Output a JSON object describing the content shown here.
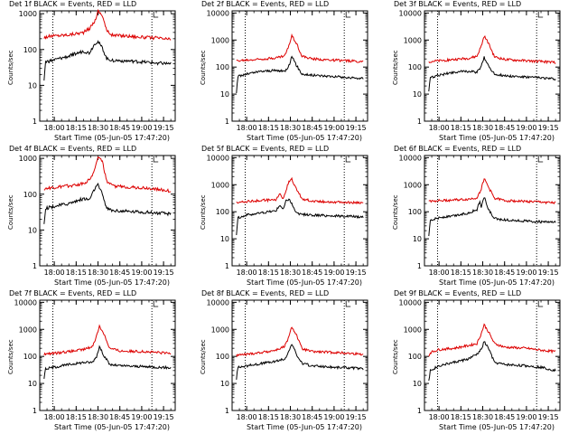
{
  "colors": {
    "events": "#000000",
    "lld": "#dd0000",
    "axis": "#000000"
  },
  "chart_data": [
    {
      "type": "line",
      "title": "Det 1f BLACK = Events, RED = LLD",
      "xlabel": "Start Time (05-Jun-05 17:47:20)",
      "ylabel": "Counts/sec",
      "x_ticks": [
        "18:00",
        "18:15",
        "18:30",
        "18:45",
        "19:00",
        "19:15"
      ],
      "y_ticks": [
        "1",
        "10",
        "100",
        "1000"
      ],
      "ylim": [
        1,
        1200
      ],
      "y_scale": "log",
      "vlines": [
        "17:59",
        "19:07"
      ],
      "series": [
        {
          "name": "LLD",
          "x": [
            "17:53",
            "17:59",
            "18:10",
            "18:20",
            "18:24",
            "18:28",
            "18:30",
            "18:33",
            "18:36",
            "18:40",
            "18:50",
            "19:00",
            "19:10",
            "19:20"
          ],
          "values": [
            220,
            240,
            260,
            300,
            380,
            650,
            1200,
            900,
            330,
            250,
            240,
            220,
            210,
            190
          ]
        },
        {
          "name": "Events",
          "x": [
            "17:53",
            "17:54",
            "17:59",
            "18:10",
            "18:20",
            "18:24",
            "18:26",
            "18:28",
            "18:30",
            "18:33",
            "18:36",
            "18:40",
            "18:50",
            "19:00",
            "19:10",
            "19:20"
          ],
          "values": [
            14,
            45,
            50,
            65,
            90,
            80,
            110,
            150,
            165,
            110,
            55,
            50,
            48,
            45,
            42,
            40
          ]
        }
      ]
    },
    {
      "type": "line",
      "title": "Det 2f BLACK = Events, RED = LLD",
      "xlabel": "Start Time (05-Jun-05 17:47:20)",
      "ylabel": "Counts/sec",
      "x_ticks": [
        "18:00",
        "18:15",
        "18:30",
        "18:45",
        "19:00",
        "19:15"
      ],
      "y_ticks": [
        "1",
        "10",
        "100",
        "1000",
        "10000"
      ],
      "ylim": [
        1,
        12000
      ],
      "y_scale": "log",
      "vlines": [
        "17:59",
        "19:07"
      ],
      "series": [
        {
          "name": "LLD",
          "x": [
            "17:53",
            "18:00",
            "18:10",
            "18:20",
            "18:26",
            "18:29",
            "18:31",
            "18:34",
            "18:38",
            "18:45",
            "19:00",
            "19:10",
            "19:20"
          ],
          "values": [
            170,
            180,
            200,
            220,
            260,
            600,
            1500,
            800,
            250,
            200,
            180,
            170,
            160
          ]
        },
        {
          "name": "Events",
          "x": [
            "17:53",
            "17:54",
            "18:00",
            "18:10",
            "18:20",
            "18:26",
            "18:29",
            "18:31",
            "18:34",
            "18:38",
            "18:45",
            "19:00",
            "19:10",
            "19:20"
          ],
          "values": [
            12,
            45,
            55,
            70,
            75,
            70,
            110,
            250,
            120,
            55,
            50,
            45,
            40,
            38
          ]
        }
      ]
    },
    {
      "type": "line",
      "title": "Det 3f BLACK = Events, RED = LLD",
      "xlabel": "Start Time (05-Jun-05 17:47:20)",
      "ylabel": "Counts/sec",
      "x_ticks": [
        "18:00",
        "18:15",
        "18:30",
        "18:45",
        "19:00",
        "19:15"
      ],
      "y_ticks": [
        "1",
        "10",
        "100",
        "1000",
        "10000"
      ],
      "ylim": [
        1,
        12000
      ],
      "y_scale": "log",
      "vlines": [
        "17:59",
        "19:07"
      ],
      "series": [
        {
          "name": "LLD",
          "x": [
            "17:53",
            "18:00",
            "18:10",
            "18:20",
            "18:26",
            "18:29",
            "18:31",
            "18:34",
            "18:38",
            "18:45",
            "19:00",
            "19:10",
            "19:20"
          ],
          "values": [
            160,
            170,
            190,
            210,
            250,
            600,
            1400,
            750,
            240,
            190,
            170,
            160,
            150
          ]
        },
        {
          "name": "Events",
          "x": [
            "17:53",
            "17:54",
            "18:00",
            "18:10",
            "18:20",
            "18:26",
            "18:29",
            "18:31",
            "18:34",
            "18:38",
            "18:45",
            "19:00",
            "19:10",
            "19:20"
          ],
          "values": [
            12,
            40,
            50,
            65,
            70,
            65,
            105,
            230,
            110,
            55,
            48,
            42,
            40,
            36
          ]
        }
      ]
    },
    {
      "type": "line",
      "title": "Det 4f BLACK = Events, RED = LLD",
      "xlabel": "Start Time (05-Jun-05 17:47:20)",
      "ylabel": "Counts/sec",
      "x_ticks": [
        "18:00",
        "18:15",
        "18:30",
        "18:45",
        "19:00",
        "19:15"
      ],
      "y_ticks": [
        "1",
        "10",
        "100",
        "1000"
      ],
      "ylim": [
        1,
        1200
      ],
      "y_scale": "log",
      "vlines": [
        "17:59",
        "19:07"
      ],
      "series": [
        {
          "name": "LLD",
          "x": [
            "17:53",
            "17:59",
            "18:10",
            "18:20",
            "18:24",
            "18:28",
            "18:30",
            "18:33",
            "18:36",
            "18:40",
            "18:50",
            "19:00",
            "19:10",
            "19:20"
          ],
          "values": [
            140,
            150,
            170,
            200,
            250,
            500,
            1200,
            800,
            220,
            170,
            160,
            150,
            140,
            120
          ]
        },
        {
          "name": "Events",
          "x": [
            "17:53",
            "17:54",
            "17:59",
            "18:10",
            "18:20",
            "18:24",
            "18:26",
            "18:28",
            "18:30",
            "18:33",
            "18:36",
            "18:40",
            "18:50",
            "19:00",
            "19:10",
            "19:20"
          ],
          "values": [
            15,
            40,
            45,
            55,
            75,
            70,
            100,
            150,
            180,
            100,
            40,
            35,
            33,
            32,
            30,
            28
          ]
        }
      ]
    },
    {
      "type": "line",
      "title": "Det 5f BLACK = Events, RED = LLD",
      "xlabel": "Start Time (05-Jun-05 17:47:20)",
      "ylabel": "Counts/sec",
      "x_ticks": [
        "18:00",
        "18:15",
        "18:30",
        "18:45",
        "19:00",
        "19:15"
      ],
      "y_ticks": [
        "1",
        "10",
        "100",
        "1000",
        "10000"
      ],
      "ylim": [
        1,
        12000
      ],
      "y_scale": "log",
      "vlines": [
        "17:59",
        "19:07"
      ],
      "series": [
        {
          "name": "LLD",
          "x": [
            "17:53",
            "18:00",
            "18:10",
            "18:20",
            "18:23",
            "18:25",
            "18:27",
            "18:29",
            "18:31",
            "18:34",
            "18:38",
            "18:45",
            "19:00",
            "19:10",
            "19:20"
          ],
          "values": [
            220,
            240,
            260,
            280,
            450,
            300,
            600,
            1400,
            1600,
            700,
            300,
            250,
            230,
            220,
            210
          ]
        },
        {
          "name": "Events",
          "x": [
            "17:53",
            "17:54",
            "18:00",
            "18:10",
            "18:20",
            "18:23",
            "18:25",
            "18:27",
            "18:29",
            "18:31",
            "18:34",
            "18:38",
            "18:45",
            "19:00",
            "19:10",
            "19:20"
          ],
          "values": [
            15,
            60,
            75,
            90,
            110,
            180,
            120,
            250,
            300,
            200,
            90,
            80,
            75,
            70,
            68,
            65
          ]
        }
      ]
    },
    {
      "type": "line",
      "title": "Det 6f BLACK = Events, RED = LLD",
      "xlabel": "Start Time (05-Jun-05 17:47:20)",
      "ylabel": "Counts/sec",
      "x_ticks": [
        "18:00",
        "18:15",
        "18:30",
        "18:45",
        "19:00",
        "19:15"
      ],
      "y_ticks": [
        "1",
        "10",
        "100",
        "1000",
        "10000"
      ],
      "ylim": [
        1,
        12000
      ],
      "y_scale": "log",
      "vlines": [
        "17:59",
        "19:07"
      ],
      "series": [
        {
          "name": "LLD",
          "x": [
            "17:53",
            "18:00",
            "18:10",
            "18:20",
            "18:26",
            "18:29",
            "18:31",
            "18:34",
            "18:38",
            "18:45",
            "19:00",
            "19:10",
            "19:20"
          ],
          "values": [
            250,
            260,
            270,
            290,
            330,
            700,
            1700,
            800,
            320,
            260,
            240,
            230,
            210
          ]
        },
        {
          "name": "Events",
          "x": [
            "17:53",
            "17:54",
            "18:00",
            "18:10",
            "18:20",
            "18:26",
            "18:28",
            "18:29",
            "18:31",
            "18:34",
            "18:38",
            "18:45",
            "19:00",
            "19:10",
            "19:20"
          ],
          "values": [
            12,
            50,
            60,
            70,
            90,
            120,
            250,
            150,
            350,
            120,
            55,
            50,
            45,
            42,
            40
          ]
        }
      ]
    },
    {
      "type": "line",
      "title": "Det 7f BLACK = Events, RED = LLD",
      "xlabel": "Start Time (05-Jun-05 17:47:20)",
      "ylabel": "Counts/sec",
      "x_ticks": [
        "18:00",
        "18:15",
        "18:30",
        "18:45",
        "19:00",
        "19:15"
      ],
      "y_ticks": [
        "1",
        "10",
        "100",
        "1000",
        "10000"
      ],
      "ylim": [
        1,
        12000
      ],
      "y_scale": "log",
      "vlines": [
        "17:59",
        "19:07"
      ],
      "series": [
        {
          "name": "LLD",
          "x": [
            "17:53",
            "18:00",
            "18:10",
            "18:20",
            "18:26",
            "18:29",
            "18:31",
            "18:34",
            "18:38",
            "18:45",
            "19:00",
            "19:10",
            "19:20"
          ],
          "values": [
            120,
            130,
            150,
            180,
            230,
            550,
            1300,
            700,
            200,
            160,
            150,
            140,
            130
          ]
        },
        {
          "name": "Events",
          "x": [
            "17:53",
            "17:54",
            "18:00",
            "18:10",
            "18:20",
            "18:26",
            "18:29",
            "18:31",
            "18:34",
            "18:38",
            "18:45",
            "19:00",
            "19:10",
            "19:20"
          ],
          "values": [
            15,
            35,
            40,
            50,
            60,
            60,
            100,
            230,
            110,
            50,
            45,
            42,
            40,
            38
          ]
        }
      ]
    },
    {
      "type": "line",
      "title": "Det 8f BLACK = Events, RED = LLD",
      "xlabel": "Start Time (05-Jun-05 17:47:20)",
      "ylabel": "Counts/sec",
      "x_ticks": [
        "18:00",
        "18:15",
        "18:30",
        "18:45",
        "19:00",
        "19:15"
      ],
      "y_ticks": [
        "1",
        "10",
        "100",
        "1000",
        "10000"
      ],
      "ylim": [
        1,
        12000
      ],
      "y_scale": "log",
      "vlines": [
        "17:59",
        "19:07"
      ],
      "series": [
        {
          "name": "LLD",
          "x": [
            "17:53",
            "18:00",
            "18:10",
            "18:20",
            "18:26",
            "18:29",
            "18:31",
            "18:34",
            "18:38",
            "18:45",
            "19:00",
            "19:10",
            "19:20"
          ],
          "values": [
            110,
            120,
            140,
            170,
            230,
            520,
            1250,
            650,
            190,
            150,
            140,
            130,
            120
          ]
        },
        {
          "name": "Events",
          "x": [
            "17:53",
            "17:54",
            "18:00",
            "18:10",
            "18:20",
            "18:26",
            "18:29",
            "18:31",
            "18:34",
            "18:38",
            "18:45",
            "19:00",
            "19:10",
            "19:20"
          ],
          "values": [
            15,
            40,
            45,
            55,
            65,
            80,
            150,
            300,
            120,
            55,
            45,
            40,
            38,
            35
          ]
        }
      ]
    },
    {
      "type": "line",
      "title": "Det 9f BLACK = Events, RED = LLD",
      "xlabel": "Start Time (05-Jun-05 17:47:20)",
      "ylabel": "Counts/sec",
      "x_ticks": [
        "18:00",
        "18:15",
        "18:30",
        "18:45",
        "19:00",
        "19:15"
      ],
      "y_ticks": [
        "1",
        "10",
        "100",
        "1000",
        "10000"
      ],
      "ylim": [
        1,
        12000
      ],
      "y_scale": "log",
      "vlines": [
        "17:59",
        "19:07"
      ],
      "series": [
        {
          "name": "LLD",
          "x": [
            "17:53",
            "17:54",
            "18:00",
            "18:10",
            "18:20",
            "18:26",
            "18:29",
            "18:31",
            "18:34",
            "18:38",
            "18:45",
            "19:00",
            "19:10",
            "19:20"
          ],
          "values": [
            100,
            140,
            180,
            200,
            250,
            300,
            700,
            1500,
            800,
            300,
            220,
            200,
            170,
            150
          ]
        },
        {
          "name": "Events",
          "x": [
            "17:53",
            "17:54",
            "18:00",
            "18:10",
            "18:20",
            "18:26",
            "18:29",
            "18:31",
            "18:34",
            "18:38",
            "18:45",
            "19:00",
            "19:10",
            "19:20"
          ],
          "values": [
            12,
            30,
            45,
            60,
            80,
            120,
            180,
            350,
            200,
            60,
            50,
            45,
            40,
            30
          ]
        }
      ]
    }
  ]
}
